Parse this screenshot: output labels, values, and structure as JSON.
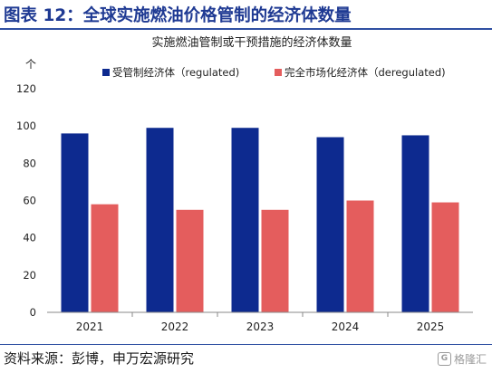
{
  "figure": {
    "title": "图表 12：全球实施燃油价格管制的经济体数量",
    "source": "资料来源：彭博，申万宏源研究",
    "watermark": "格隆汇"
  },
  "chart_data": {
    "type": "bar",
    "title": "实施燃油管制或干预措施的经济体数量",
    "ylabel": "个",
    "xlabel": "",
    "ylim": [
      0,
      120
    ],
    "yticks": [
      0,
      20,
      40,
      60,
      80,
      100,
      120
    ],
    "categories": [
      "2021",
      "2022",
      "2023",
      "2024",
      "2025"
    ],
    "series": [
      {
        "name": "受管制经济体（regulated)",
        "color": "#0d2a8f",
        "values": [
          96,
          99,
          99,
          94,
          95
        ]
      },
      {
        "name": "完全市场化经济体（deregulated)",
        "color": "#e45d5d",
        "values": [
          58,
          55,
          55,
          60,
          59
        ]
      }
    ],
    "legend": "top",
    "grid": false
  }
}
